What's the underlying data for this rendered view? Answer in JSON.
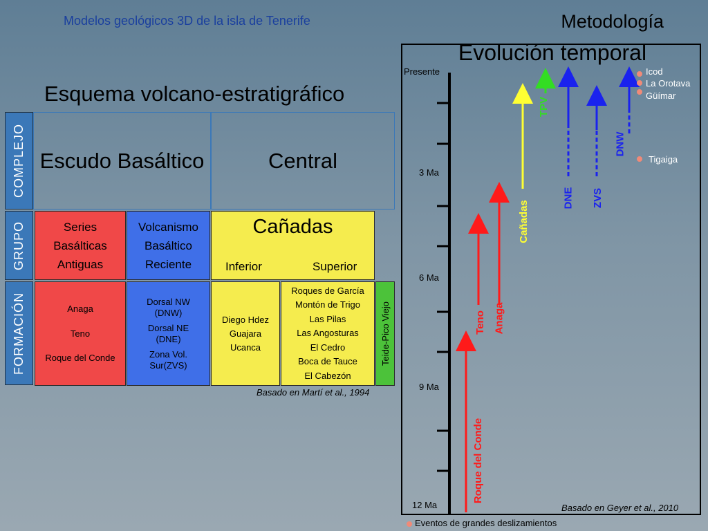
{
  "header": {
    "subtitle": "Modelos geológicos 3D de la isla de Tenerife",
    "section": "Metodología"
  },
  "left": {
    "title": "Esquema volcano-estratigráfico",
    "row_labels": {
      "complejo": "COMPLEJO",
      "grupo": "GRUPO",
      "formacion": "FORMACIÓN"
    },
    "complejo": {
      "escudo": "Escudo Basáltico",
      "central": "Central"
    },
    "grupo": {
      "series_l1": "Series",
      "series_l2": "Basálticas",
      "series_l3": "Antiguas",
      "volc_l1": "Volcanismo",
      "volc_l2": "Basáltico",
      "volc_l3": "Reciente",
      "canadas": "Cañadas",
      "inferior": "Inferior",
      "superior": "Superior"
    },
    "formacion": {
      "series": [
        "Anaga",
        "Teno",
        "Roque del Conde"
      ],
      "volc": [
        "Dorsal NW",
        "(DNW)",
        "Dorsal NE",
        "(DNE)",
        "Zona Vol.",
        "Sur(ZVS)"
      ],
      "inferior": [
        "Diego Hdez",
        "Guajara",
        "Ucanca"
      ],
      "superior": [
        "Roques de García",
        "Montón de Trigo",
        "Las Pilas",
        "Las Angosturas",
        "El Cedro",
        "Boca de Tauce",
        "El Cabezón"
      ],
      "teide": "Teide-Pico Viejo"
    },
    "note": "Basado en Martí et al., 1994",
    "colors": {
      "red": "#f04848",
      "blue": "#3f6fe8",
      "yellow": "#f5ec4e",
      "green": "#4cc23a",
      "label_blue": "#3b78b8"
    }
  },
  "right": {
    "title": "Evolución temporal",
    "time_labels": {
      "presente": "Presente",
      "t3": "3 Ma",
      "t6": "6 Ma",
      "t9": "9 Ma",
      "t12": "12 Ma"
    },
    "arrows": {
      "roque": "Roque del Conde",
      "teno": "Teno",
      "anaga": "Anaga",
      "canadas": "Cañadas",
      "tpv": "TPV",
      "dne": "DNE",
      "zvs": "ZVS",
      "dnw": "DNW"
    },
    "events": {
      "icod": "Icod",
      "orotava": "La Orotava",
      "guimar": "Güímar",
      "tigaiga": "Tigaiga"
    },
    "note": "Basado en Geyer et al., 2010",
    "legend": "Eventos de grandes deslizamientos"
  }
}
